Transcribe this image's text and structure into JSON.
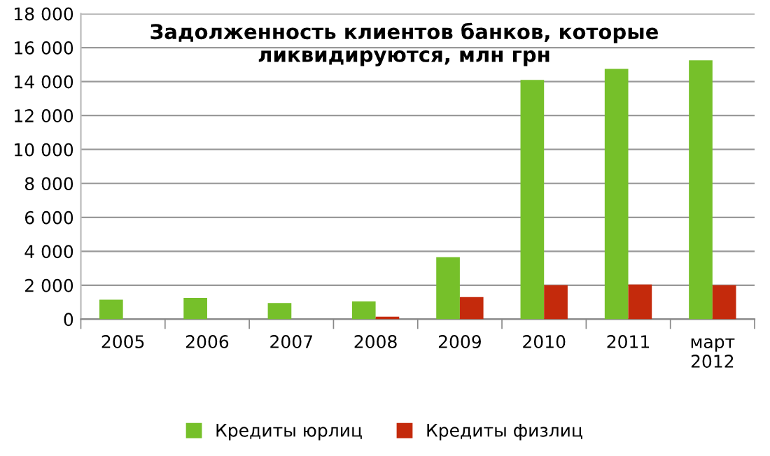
{
  "chart_data": {
    "type": "bar",
    "title": "Задолженность клиентов банков, которые\nликвидируются, млн грн",
    "categories": [
      "2005",
      "2006",
      "2007",
      "2008",
      "2009",
      "2010",
      "2011",
      "март\n2012"
    ],
    "series": [
      {
        "name": "Кредиты юрлиц",
        "color": "#76c02a",
        "values": [
          1150,
          1250,
          950,
          1050,
          3650,
          14100,
          14750,
          15250
        ]
      },
      {
        "name": "Кредиты физлиц",
        "color": "#c42a0c",
        "values": [
          null,
          null,
          null,
          150,
          1300,
          2000,
          2050,
          2000
        ]
      }
    ],
    "ylim": [
      0,
      18000
    ],
    "yticks": [
      0,
      {
        "value": 2000,
        "label": "2 000"
      },
      {
        "value": 4000,
        "label": "4 000"
      },
      {
        "value": 6000,
        "label": "6 000"
      },
      {
        "value": 8000,
        "label": "8 000"
      },
      {
        "value": 10000,
        "label": "10 000"
      },
      {
        "value": 12000,
        "label": "12 000"
      },
      {
        "value": 14000,
        "label": "14 000"
      },
      {
        "value": 16000,
        "label": "16 000"
      },
      {
        "value": 18000,
        "label": "18 000"
      }
    ],
    "grid": "y",
    "legend": "bottom"
  }
}
